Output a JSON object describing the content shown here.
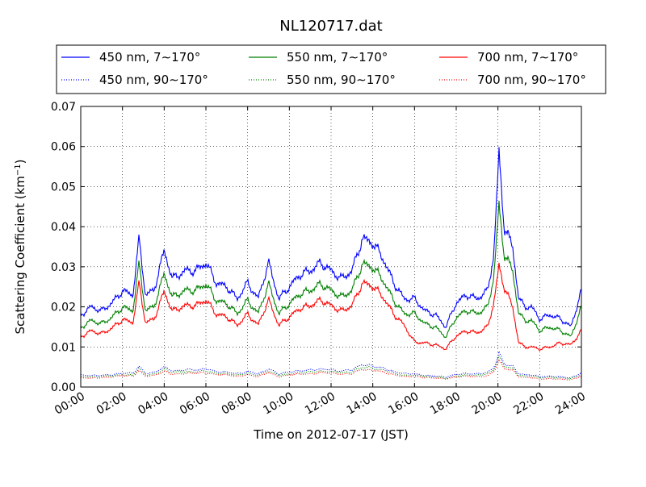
{
  "chart_data": {
    "type": "line",
    "title": "NL120717.dat",
    "xlabel": "Time on 2012-07-17 (JST)",
    "ylabel": "Scattering Coefficient (km",
    "ylabel_sup": "−1",
    "ylabel_tail": ")",
    "xlim": [
      "00:00",
      "24:00"
    ],
    "ylim": [
      0,
      0.07
    ],
    "grid": true,
    "legend_position": "top",
    "xticks": [
      "00:00",
      "02:00",
      "04:00",
      "06:00",
      "08:00",
      "10:00",
      "12:00",
      "14:00",
      "16:00",
      "18:00",
      "20:00",
      "22:00",
      "24:00"
    ],
    "yticks": [
      "0.00",
      "0.01",
      "0.02",
      "0.03",
      "0.04",
      "0.05",
      "0.06",
      "0.07"
    ],
    "hour_keypoints": [
      0,
      0.5,
      1,
      1.5,
      2,
      2.5,
      2.8,
      3.1,
      3.5,
      4.0,
      4.4,
      5,
      5.5,
      6,
      6.5,
      7,
      7.5,
      8,
      8.5,
      9.0,
      9.5,
      10,
      10.5,
      11,
      11.5,
      12,
      12.5,
      13,
      13.5,
      14,
      14.5,
      15,
      15.5,
      16,
      16.5,
      17,
      17.5,
      18,
      18.5,
      19,
      19.5,
      19.8,
      20.05,
      20.3,
      20.7,
      21,
      21.3,
      21.6,
      22,
      22.5,
      23,
      23.5,
      24
    ],
    "series": [
      {
        "name": "450 nm, 7∼170°",
        "color": "#0000ff",
        "style": "solid",
        "values": [
          0.018,
          0.02,
          0.019,
          0.021,
          0.024,
          0.023,
          0.037,
          0.023,
          0.024,
          0.034,
          0.027,
          0.029,
          0.029,
          0.031,
          0.026,
          0.025,
          0.022,
          0.026,
          0.022,
          0.031,
          0.022,
          0.025,
          0.028,
          0.029,
          0.031,
          0.029,
          0.027,
          0.029,
          0.037,
          0.036,
          0.032,
          0.026,
          0.022,
          0.022,
          0.019,
          0.018,
          0.015,
          0.021,
          0.023,
          0.022,
          0.024,
          0.033,
          0.058,
          0.04,
          0.035,
          0.022,
          0.02,
          0.02,
          0.017,
          0.018,
          0.017,
          0.015,
          0.024
        ]
      },
      {
        "name": "450 nm, 90∼170°",
        "color": "#0000ff",
        "style": "dotted",
        "values": [
          0.003,
          0.0028,
          0.0029,
          0.0031,
          0.0035,
          0.0034,
          0.0052,
          0.0034,
          0.0036,
          0.005,
          0.004,
          0.0043,
          0.0043,
          0.0045,
          0.0039,
          0.0037,
          0.0033,
          0.0039,
          0.0033,
          0.0045,
          0.0033,
          0.0037,
          0.0041,
          0.0042,
          0.0045,
          0.0043,
          0.004,
          0.0043,
          0.0056,
          0.0053,
          0.0047,
          0.0039,
          0.0033,
          0.0033,
          0.0029,
          0.0028,
          0.0025,
          0.0031,
          0.0034,
          0.0033,
          0.0036,
          0.0048,
          0.0085,
          0.0058,
          0.0052,
          0.0033,
          0.003,
          0.003,
          0.0026,
          0.0027,
          0.0026,
          0.0023,
          0.0035
        ]
      },
      {
        "name": "550 nm, 7∼170°",
        "color": "#008000",
        "style": "solid",
        "values": [
          0.0149,
          0.0166,
          0.0158,
          0.0174,
          0.0199,
          0.0191,
          0.0307,
          0.0191,
          0.0199,
          0.0282,
          0.0224,
          0.0241,
          0.0241,
          0.0257,
          0.0216,
          0.0208,
          0.0183,
          0.0216,
          0.0183,
          0.0257,
          0.0183,
          0.0208,
          0.0232,
          0.0241,
          0.0257,
          0.0241,
          0.0224,
          0.0241,
          0.0307,
          0.0299,
          0.0266,
          0.0216,
          0.0183,
          0.0183,
          0.0158,
          0.0149,
          0.0125,
          0.0174,
          0.0191,
          0.0183,
          0.0199,
          0.0274,
          0.045,
          0.0332,
          0.0291,
          0.0183,
          0.0166,
          0.0166,
          0.0141,
          0.0149,
          0.0141,
          0.0125,
          0.0199
        ]
      },
      {
        "name": "550 nm, 90∼170°",
        "color": "#008000",
        "style": "dotted",
        "values": [
          0.0026,
          0.0025,
          0.0026,
          0.0028,
          0.0031,
          0.003,
          0.0046,
          0.003,
          0.0032,
          0.0044,
          0.0036,
          0.0038,
          0.0038,
          0.004,
          0.0035,
          0.0033,
          0.0029,
          0.0035,
          0.0029,
          0.004,
          0.0029,
          0.0033,
          0.0036,
          0.0037,
          0.004,
          0.0038,
          0.0036,
          0.0038,
          0.005,
          0.0047,
          0.0042,
          0.0035,
          0.0029,
          0.0029,
          0.0026,
          0.0025,
          0.0022,
          0.0028,
          0.003,
          0.0029,
          0.0032,
          0.0043,
          0.0075,
          0.0052,
          0.0046,
          0.0029,
          0.0027,
          0.0027,
          0.0023,
          0.0024,
          0.0023,
          0.0021,
          0.0031
        ]
      },
      {
        "name": "700 nm, 7∼170°",
        "color": "#ff0000",
        "style": "solid",
        "values": [
          0.0126,
          0.014,
          0.0133,
          0.0147,
          0.0168,
          0.0161,
          0.0259,
          0.0161,
          0.0168,
          0.0238,
          0.0189,
          0.0203,
          0.0203,
          0.0217,
          0.0182,
          0.0175,
          0.0154,
          0.0182,
          0.0154,
          0.0217,
          0.0154,
          0.0175,
          0.0196,
          0.0203,
          0.0217,
          0.0203,
          0.0189,
          0.0203,
          0.0259,
          0.0252,
          0.0224,
          0.0182,
          0.0154,
          0.0112,
          0.011,
          0.0105,
          0.0095,
          0.0128,
          0.014,
          0.0135,
          0.015,
          0.021,
          0.03,
          0.025,
          0.02,
          0.011,
          0.01,
          0.01,
          0.0095,
          0.01,
          0.011,
          0.0105,
          0.014
        ]
      },
      {
        "name": "700 nm, 90∼170°",
        "color": "#ff0000",
        "style": "dotted",
        "values": [
          0.0023,
          0.0022,
          0.0023,
          0.0025,
          0.0028,
          0.0027,
          0.0041,
          0.0027,
          0.0029,
          0.0039,
          0.0032,
          0.0034,
          0.0034,
          0.0036,
          0.0031,
          0.003,
          0.0026,
          0.0031,
          0.0026,
          0.0036,
          0.0026,
          0.003,
          0.0032,
          0.0033,
          0.0036,
          0.0034,
          0.0032,
          0.0034,
          0.0044,
          0.0042,
          0.0037,
          0.0031,
          0.0026,
          0.0026,
          0.0023,
          0.0022,
          0.002,
          0.0025,
          0.0027,
          0.0026,
          0.0028,
          0.0038,
          0.0066,
          0.0046,
          0.0041,
          0.0026,
          0.0024,
          0.0024,
          0.002,
          0.0021,
          0.002,
          0.0018,
          0.0027
        ]
      }
    ]
  }
}
